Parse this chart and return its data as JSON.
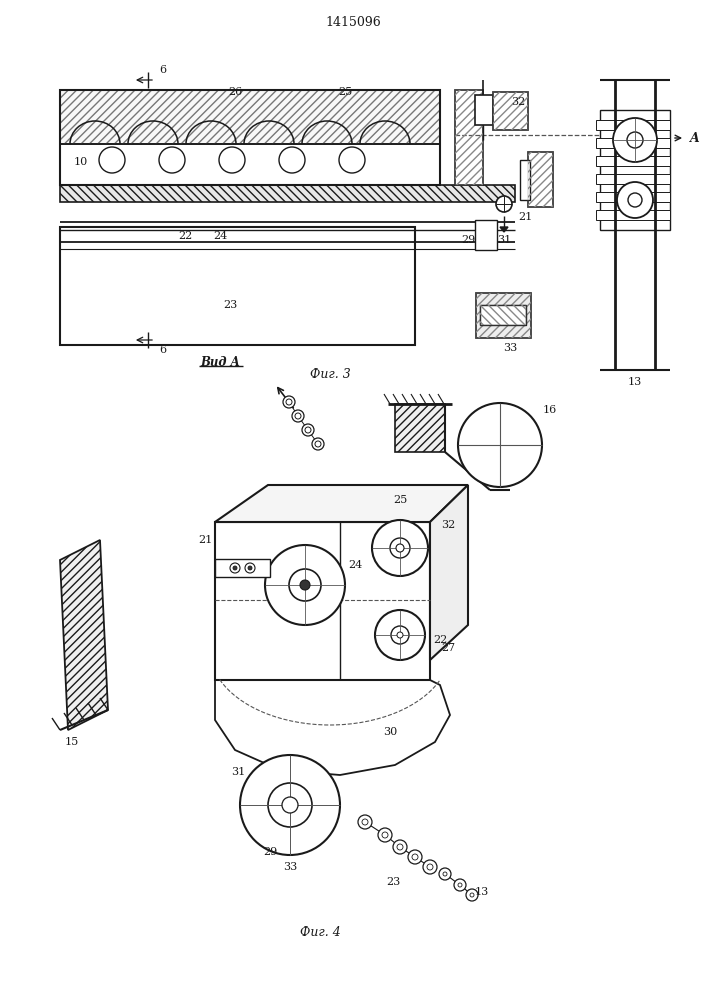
{
  "title": "1415096",
  "fig3_label": "Фиг. 3",
  "fig4_label": "Фиг. 4",
  "vida_label": "Вид A",
  "background": "#ffffff",
  "line_color": "#1a1a1a"
}
